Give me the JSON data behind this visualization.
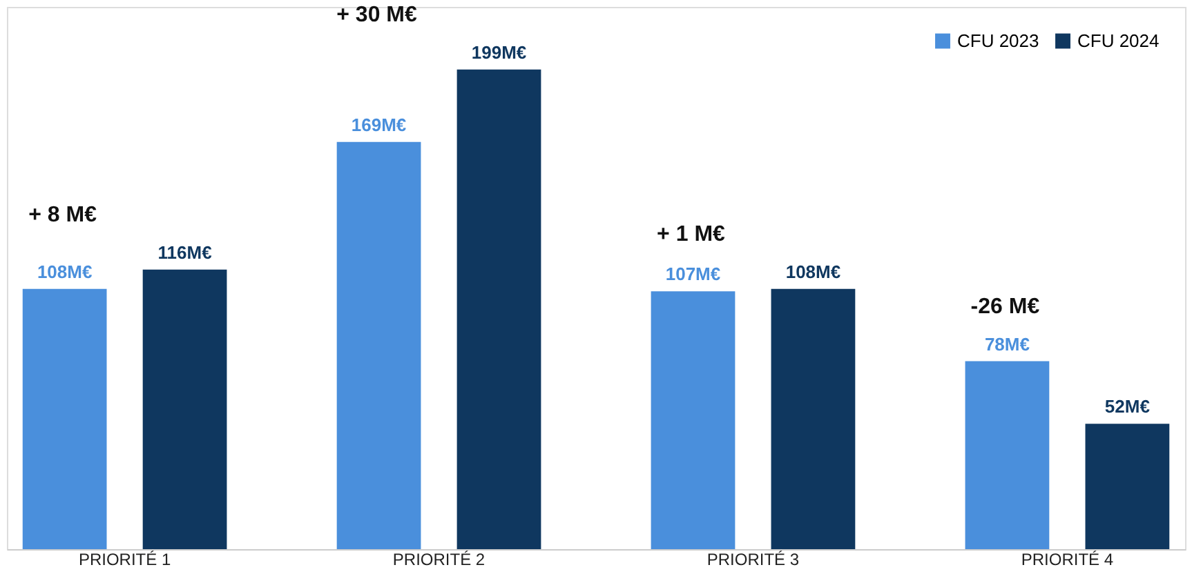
{
  "chart_data": {
    "type": "bar",
    "categories": [
      "PRIORITÉ 1",
      "PRIORITÉ 2",
      "PRIORITÉ 3",
      "PRIORITÉ 4"
    ],
    "series": [
      {
        "name": "CFU 2023",
        "color": "#4a8fdc",
        "values": [
          108,
          169,
          107,
          78
        ],
        "value_labels": [
          "108M€",
          "169M€",
          "107M€",
          "78M€"
        ]
      },
      {
        "name": "CFU 2024",
        "color": "#0f375f",
        "values": [
          116,
          199,
          108,
          52
        ],
        "value_labels": [
          "116M€",
          "199M€",
          "108M€",
          "52M€"
        ]
      }
    ],
    "ylim": [
      0,
      225
    ],
    "legend": "top right",
    "grid": false,
    "tick_labels": "x",
    "annotations": [
      "+ 8 M€",
      "+ 30 M€",
      "+ 1 M€",
      "-26 M€"
    ]
  }
}
